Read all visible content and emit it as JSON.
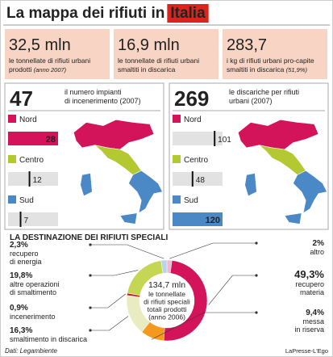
{
  "header": {
    "title": "La mappa dei rifiuti in",
    "title_highlight": "Italia"
  },
  "stats": [
    {
      "value": "32,5 mln",
      "lines": [
        "le tonnellate di rifiuti urbani",
        "prodotti"
      ],
      "note": "(anno 2007)"
    },
    {
      "value": "16,9 mln",
      "lines": [
        "le tonnellate di rifiuti urbani",
        "smaltiti in discarica"
      ]
    },
    {
      "value": "283,7",
      "lines": [
        "i kg di rifiuti urbani pro-capite",
        "smaltiti in discarica"
      ],
      "note": "(51,9%)"
    }
  ],
  "panels": [
    {
      "total": 47,
      "description": [
        "il numero impianti",
        "di incenerimento (2007)"
      ],
      "regions": [
        {
          "name": "Nord",
          "value": 28,
          "color": "#d4145a"
        },
        {
          "name": "Centro",
          "value": 12,
          "color": "#b3c831"
        },
        {
          "name": "Sud",
          "value": 7,
          "color": "#4a89c6"
        }
      ]
    },
    {
      "total": 269,
      "description": [
        "le discariche per rifiuti",
        "urbani (2007)"
      ],
      "regions": [
        {
          "name": "Nord",
          "value": 101,
          "color": "#d4145a"
        },
        {
          "name": "Centro",
          "value": 48,
          "color": "#b3c831"
        },
        {
          "name": "Sud",
          "value": 120,
          "color": "#4a89c6"
        }
      ]
    }
  ],
  "special_waste": {
    "title": "LA DESTINAZIONE DEI RIFIUTI SPECIALI",
    "total": "134,7 mln",
    "total_lines": [
      "le tonnellate",
      "di rifiuti speciali",
      "totali prodotti",
      "(anno 2006)"
    ],
    "segments": [
      {
        "value": 2,
        "value_label": "2%",
        "lines": [
          "altro"
        ],
        "color": "#f2b8cf"
      },
      {
        "value": 49.3,
        "value_label": "49,3%",
        "lines": [
          "recupero",
          "materia"
        ],
        "color": "#d4145a"
      },
      {
        "value": 9.4,
        "value_label": "9,4%",
        "lines": [
          "messa",
          "in riserva"
        ],
        "color": "#f39a1e"
      },
      {
        "value": 16.3,
        "value_label": "16,3%",
        "lines": [
          "smaltimento in discarica"
        ],
        "color": "#e9ecc0"
      },
      {
        "value": 0.9,
        "value_label": "0,9%",
        "lines": [
          "incenerimento"
        ],
        "color": "#c8102e"
      },
      {
        "value": 19.8,
        "value_label": "19,8%",
        "lines": [
          "altre operazioni",
          "di smaltimento"
        ],
        "color": "#c5d654"
      },
      {
        "value": 2.3,
        "value_label": "2,3%",
        "lines": [
          "recupero",
          "di energia"
        ],
        "color": "#b9d3ea"
      }
    ]
  },
  "footer": {
    "source": "Dati: Legambiente",
    "credit": "LaPresse-L'Ego"
  }
}
